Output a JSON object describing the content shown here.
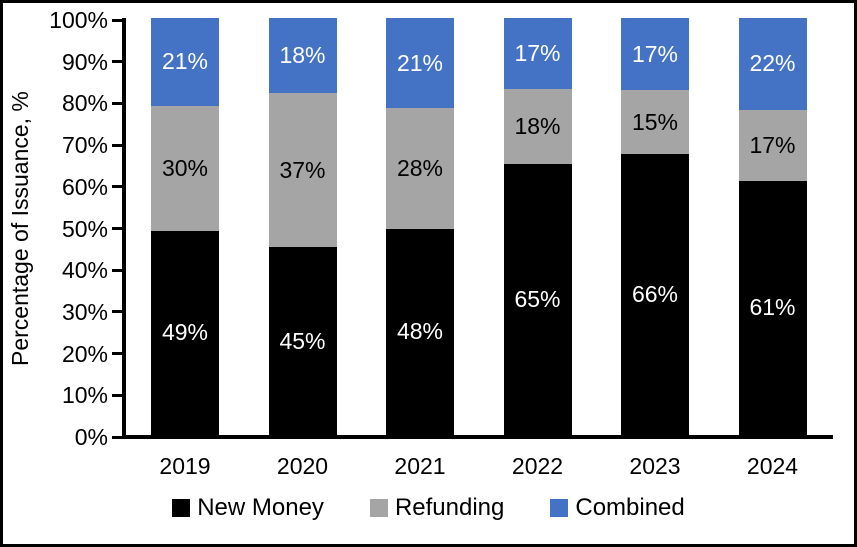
{
  "chart_data": {
    "type": "bar",
    "stacked": true,
    "percent_stacked": true,
    "title": "",
    "categories": [
      "2019",
      "2020",
      "2021",
      "2022",
      "2023",
      "2024"
    ],
    "series": [
      {
        "name": "New Money",
        "color": "#000000",
        "label_color": "#FFFFFF",
        "values": [
          49,
          45,
          48,
          65,
          66,
          61
        ]
      },
      {
        "name": "Refunding",
        "color": "#A5A5A5",
        "label_color": "#000000",
        "values": [
          30,
          37,
          28,
          18,
          15,
          17
        ]
      },
      {
        "name": "Combined",
        "color": "#4472C4",
        "label_color": "#FFFFFF",
        "values": [
          21,
          18,
          21,
          17,
          17,
          22
        ]
      }
    ],
    "data_label_suffix": "%",
    "xlabel": "",
    "ylabel": "Percentage of Issuance, %",
    "ylim": [
      0,
      100
    ],
    "yticks": [
      "0%",
      "10%",
      "20%",
      "30%",
      "40%",
      "50%",
      "60%",
      "70%",
      "80%",
      "90%",
      "100%"
    ],
    "grid": false,
    "legend_position": "bottom",
    "axis_color": "#000000",
    "background_color": "#FFFFFF",
    "frame_border_color": "#000000"
  }
}
